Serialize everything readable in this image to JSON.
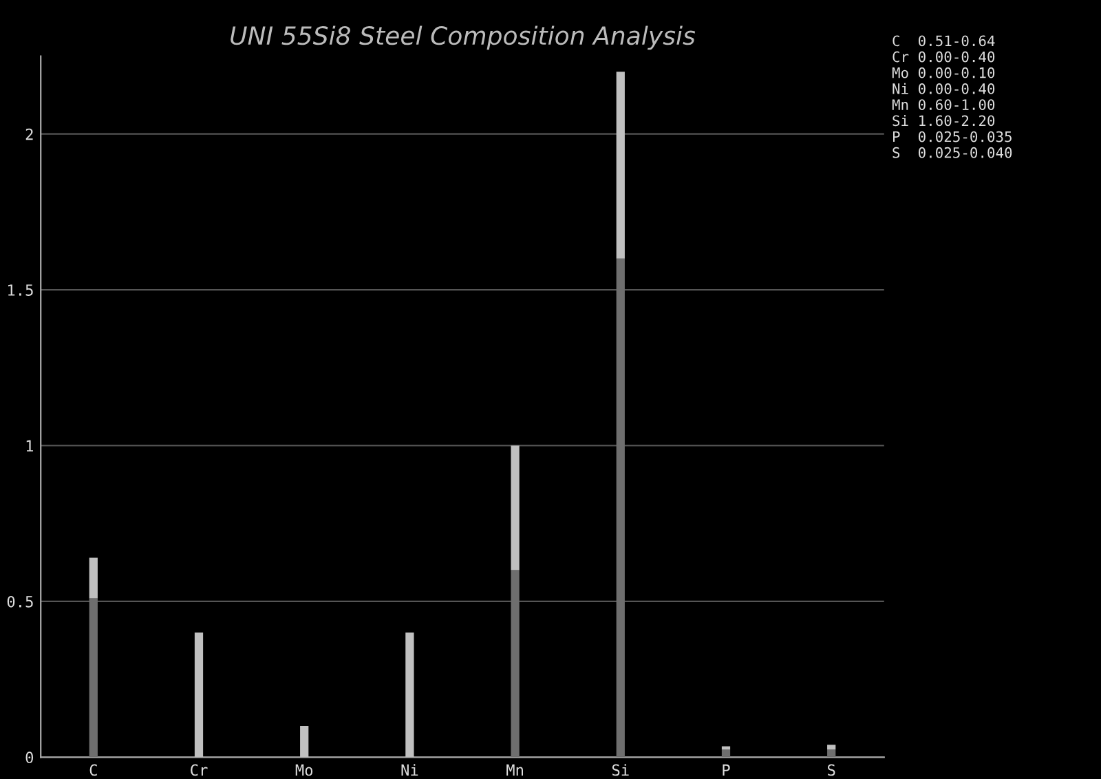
{
  "chart_data": {
    "type": "bar",
    "title": "UNI 55Si8 Steel Composition Analysis",
    "stacked": true,
    "categories": [
      "C",
      "Cr",
      "Mo",
      "Ni",
      "Mn",
      "Si",
      "P",
      "S"
    ],
    "series": [
      {
        "color": "#6e6e6e",
        "values": [
          0.51,
          0,
          0,
          0,
          0.6,
          1.6,
          0.025,
          0.025
        ]
      },
      {
        "color": "#c0c0c0",
        "values": [
          0.13,
          0.4,
          0.1,
          0.4,
          0.4,
          0.6,
          0.01,
          0.015
        ]
      }
    ],
    "ylim": [
      0,
      2.25
    ],
    "yticks": [
      0,
      0.5,
      1,
      1.5,
      2
    ],
    "grid": "y",
    "legend": false,
    "annotations": [
      "C  0.51-0.64",
      "Cr 0.00-0.40",
      "Mo 0.00-0.10",
      "Ni 0.00-0.40",
      "Mn 0.60-1.00",
      "Si 1.60-2.20",
      "P  0.025-0.035",
      "S  0.025-0.040"
    ]
  }
}
